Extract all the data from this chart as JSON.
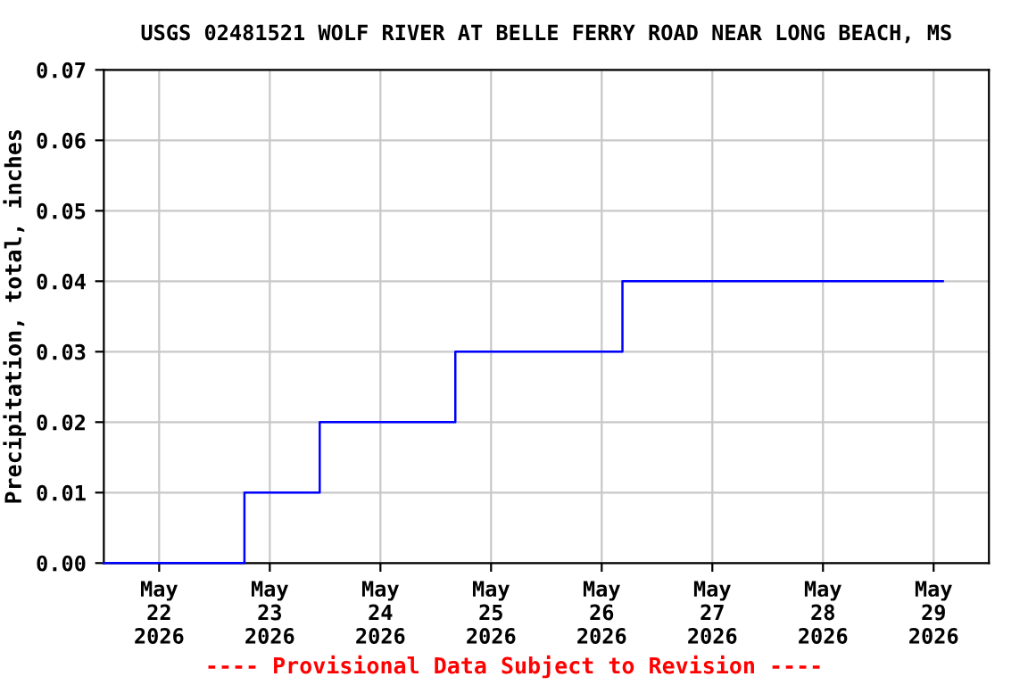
{
  "chart_data": {
    "type": "step",
    "title": "USGS 02481521 WOLF RIVER AT BELLE FERRY ROAD NEAR LONG BEACH, MS",
    "ylabel": "Precipitation, total, inches",
    "series": [
      {
        "color": "#0000ff",
        "x": [
          "2026-05-21T12:00",
          "2026-05-22T18:30",
          "2026-05-23T10:50",
          "2026-05-24T16:15",
          "2026-05-26T04:30",
          "2026-05-29T02:00"
        ],
        "values": [
          0,
          0.01,
          0.02,
          0.03,
          0.04,
          0.04
        ]
      }
    ],
    "xlim": [
      "2026-05-21T12:00",
      "2026-05-29T12:00"
    ],
    "xticks": [
      {
        "value": "2026-05-22",
        "label": "May\n22\n2026"
      },
      {
        "value": "2026-05-23",
        "label": "May\n23\n2026"
      },
      {
        "value": "2026-05-24",
        "label": "May\n24\n2026"
      },
      {
        "value": "2026-05-25",
        "label": "May\n25\n2026"
      },
      {
        "value": "2026-05-26",
        "label": "May\n26\n2026"
      },
      {
        "value": "2026-05-27",
        "label": "May\n27\n2026"
      },
      {
        "value": "2026-05-28",
        "label": "May\n28\n2026"
      },
      {
        "value": "2026-05-29",
        "label": "May\n29\n2026"
      }
    ],
    "ylim": [
      0,
      0.07
    ],
    "yticks": [
      {
        "value": 0,
        "label": "0.00"
      },
      {
        "value": 0.01,
        "label": "0.01"
      },
      {
        "value": 0.02,
        "label": "0.02"
      },
      {
        "value": 0.03,
        "label": "0.03"
      },
      {
        "value": 0.04,
        "label": "0.04"
      },
      {
        "value": 0.05,
        "label": "0.05"
      },
      {
        "value": 0.06,
        "label": "0.06"
      },
      {
        "value": 0.07,
        "label": "0.07"
      }
    ],
    "grid": true,
    "annotations": [
      "---- Provisional Data Subject to Revision ----"
    ]
  }
}
